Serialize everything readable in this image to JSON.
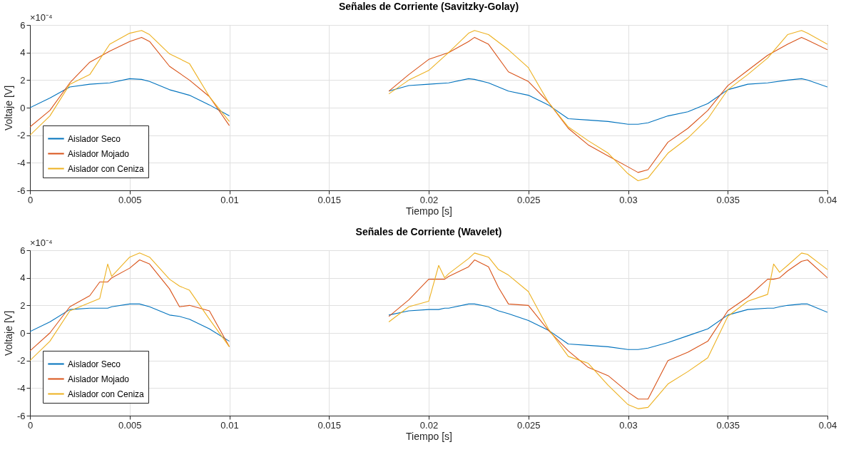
{
  "chart_data": [
    {
      "type": "line",
      "title": "Señales de Corriente (Savitzky-Golay)",
      "xlabel": "Tiempo [s]",
      "ylabel": "Voltaje [V]",
      "annotations": [
        "×10⁻⁴"
      ],
      "x": [
        0,
        0.001,
        0.002,
        0.003,
        0.004,
        0.005,
        0.0056,
        0.006,
        0.007,
        0.008,
        0.009,
        0.01,
        0.014,
        0.018,
        0.019,
        0.02,
        0.021,
        0.022,
        0.0223,
        0.023,
        0.024,
        0.025,
        0.026,
        0.027,
        0.028,
        0.029,
        0.03,
        0.0305,
        0.031,
        0.032,
        0.033,
        0.034,
        0.035,
        0.036,
        0.037,
        0.038,
        0.0387,
        0.039,
        0.04
      ],
      "series": [
        {
          "name": "Aislador Seco",
          "color": "#0072bd",
          "values": [
            0,
            0.7,
            1.5,
            1.7,
            1.8,
            2.1,
            2.05,
            1.9,
            1.3,
            0.9,
            0.2,
            -0.6,
            null,
            1.2,
            1.6,
            1.7,
            1.8,
            2.1,
            2.05,
            1.8,
            1.2,
            0.9,
            0.2,
            -0.8,
            -0.9,
            -1.0,
            -1.2,
            -1.2,
            -1.1,
            -0.6,
            -0.3,
            0.3,
            1.3,
            1.7,
            1.8,
            2.0,
            2.1,
            2.0,
            1.5
          ]
        },
        {
          "name": "Aislador Mojado",
          "color": "#d95319",
          "values": [
            -1.4,
            -0.2,
            1.8,
            3.3,
            4.1,
            4.8,
            5.1,
            4.8,
            3.0,
            2.0,
            0.8,
            -1.3,
            null,
            1.2,
            2.4,
            3.5,
            4.0,
            4.8,
            5.1,
            4.6,
            2.6,
            1.9,
            0.4,
            -1.5,
            -2.7,
            -3.5,
            -4.3,
            -4.7,
            -4.5,
            -2.5,
            -1.5,
            -0.2,
            1.6,
            2.7,
            3.8,
            4.6,
            5.1,
            4.9,
            4.2
          ]
        },
        {
          "name": "Aislador con Ceniza",
          "color": "#edb120",
          "values": [
            -2.0,
            -0.6,
            1.7,
            2.4,
            4.6,
            5.4,
            5.6,
            5.3,
            3.9,
            3.2,
            0.8,
            -1.0,
            null,
            1.0,
            2.0,
            2.7,
            4.0,
            5.4,
            5.6,
            5.3,
            4.2,
            2.9,
            0.4,
            -1.4,
            -2.4,
            -3.3,
            -4.8,
            -5.3,
            -5.1,
            -3.3,
            -2.2,
            -0.8,
            1.3,
            2.4,
            3.6,
            5.3,
            5.6,
            5.4,
            4.6
          ]
        }
      ],
      "xlim": [
        0,
        0.04
      ],
      "xticks": [
        0,
        0.005,
        0.01,
        0.015,
        0.02,
        0.025,
        0.03,
        0.035,
        0.04
      ],
      "ylim": [
        -6,
        6
      ],
      "yticks": [
        -6,
        -4,
        -2,
        0,
        2,
        4,
        6
      ],
      "grid": true,
      "legend": "bottom left"
    },
    {
      "type": "line",
      "title": "Señales de Corriente (Wavelet)",
      "xlabel": "Tiempo [s]",
      "ylabel": "Voltaje [V]",
      "annotations": [
        "×10⁻⁴"
      ],
      "x": [
        0,
        0.001,
        0.002,
        0.003,
        0.0035,
        0.0039,
        0.0041,
        0.005,
        0.0055,
        0.006,
        0.007,
        0.0075,
        0.008,
        0.009,
        0.01,
        0.014,
        0.018,
        0.019,
        0.02,
        0.0205,
        0.0208,
        0.021,
        0.022,
        0.0223,
        0.023,
        0.0235,
        0.024,
        0.025,
        0.026,
        0.027,
        0.028,
        0.029,
        0.03,
        0.0305,
        0.031,
        0.032,
        0.033,
        0.034,
        0.035,
        0.036,
        0.037,
        0.0373,
        0.0376,
        0.038,
        0.0387,
        0.039,
        0.04
      ],
      "series": [
        {
          "name": "Aislador Seco",
          "color": "#0072bd",
          "values": [
            0.1,
            0.8,
            1.7,
            1.8,
            1.8,
            1.8,
            1.9,
            2.1,
            2.1,
            1.9,
            1.3,
            1.2,
            1.0,
            0.3,
            -0.6,
            null,
            1.3,
            1.6,
            1.7,
            1.7,
            1.8,
            1.8,
            2.1,
            2.1,
            1.9,
            1.6,
            1.4,
            0.9,
            0.2,
            -0.8,
            -0.9,
            -1.0,
            -1.2,
            -1.2,
            -1.1,
            -0.7,
            -0.2,
            0.3,
            1.3,
            1.7,
            1.8,
            1.8,
            1.9,
            2.0,
            2.1,
            2.1,
            1.5
          ]
        },
        {
          "name": "Aislador Mojado",
          "color": "#d95319",
          "values": [
            -1.3,
            0.0,
            1.9,
            2.7,
            3.7,
            3.7,
            4.0,
            4.7,
            5.3,
            5.0,
            3.2,
            1.9,
            2.0,
            1.6,
            -1.0,
            null,
            1.2,
            2.4,
            3.9,
            3.9,
            3.9,
            4.1,
            4.8,
            5.3,
            4.8,
            3.3,
            2.1,
            2.0,
            0.2,
            -1.3,
            -2.5,
            -3.1,
            -4.3,
            -4.8,
            -4.8,
            -2.0,
            -1.4,
            -0.6,
            1.6,
            2.6,
            3.9,
            3.9,
            4.0,
            4.5,
            5.2,
            5.3,
            4.0
          ]
        },
        {
          "name": "Aislador con Ceniza",
          "color": "#edb120",
          "values": [
            -2.0,
            -0.6,
            1.6,
            2.2,
            2.5,
            5.0,
            4.1,
            5.5,
            5.8,
            5.5,
            3.9,
            3.4,
            3.1,
            1.0,
            -1.0,
            null,
            0.8,
            1.9,
            2.3,
            4.9,
            4.0,
            4.3,
            5.4,
            5.8,
            5.5,
            4.6,
            4.2,
            3.0,
            0.3,
            -1.7,
            -2.2,
            -3.8,
            -5.2,
            -5.5,
            -5.4,
            -3.7,
            -2.8,
            -1.8,
            1.2,
            2.3,
            2.8,
            5.0,
            4.4,
            4.9,
            5.8,
            5.7,
            4.6
          ]
        }
      ],
      "xlim": [
        0,
        0.04
      ],
      "xticks": [
        0,
        0.005,
        0.01,
        0.015,
        0.02,
        0.025,
        0.03,
        0.035,
        0.04
      ],
      "ylim": [
        -6,
        6
      ],
      "yticks": [
        -6,
        -4,
        -2,
        0,
        2,
        4,
        6
      ],
      "grid": true,
      "legend": "bottom left"
    }
  ]
}
